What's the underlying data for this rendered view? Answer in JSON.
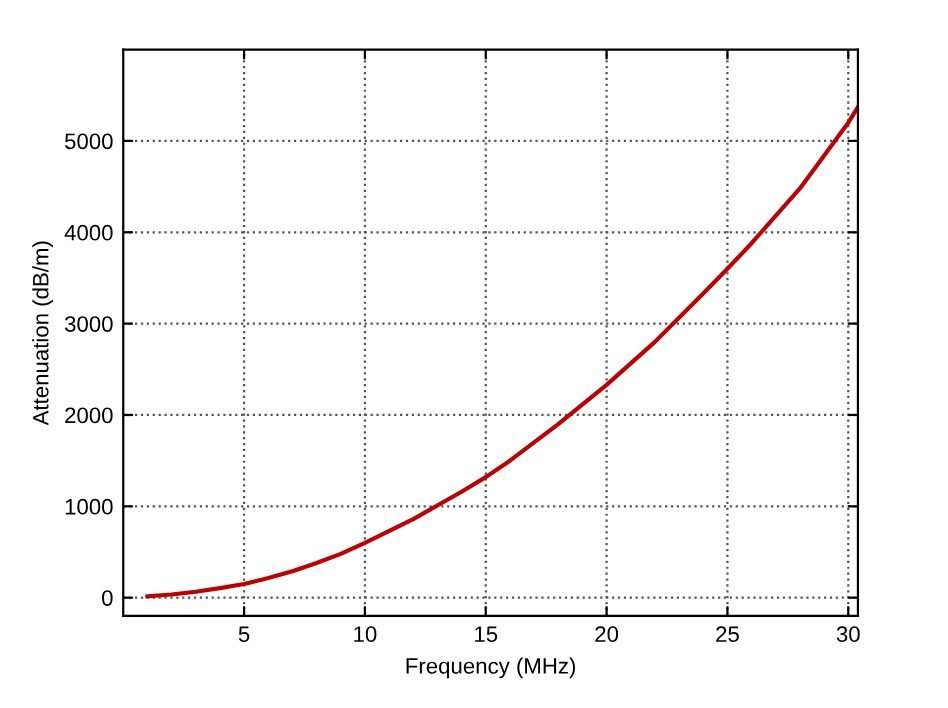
{
  "chart_data": {
    "type": "line",
    "xlabel": "Frequency (MHz)",
    "ylabel": "Attenuation (dB/m)",
    "series": [
      {
        "color": "#c00000",
        "x": [
          1,
          2,
          3,
          4,
          5,
          6,
          7,
          8,
          9,
          10,
          12,
          14,
          15,
          16,
          18,
          20,
          22,
          24,
          25,
          26,
          28,
          30,
          30.4
        ],
        "values": [
          15,
          35,
          65,
          105,
          150,
          215,
          290,
          380,
          480,
          600,
          860,
          1160,
          1320,
          1500,
          1900,
          2330,
          2800,
          3330,
          3600,
          3880,
          4480,
          5200,
          5370
        ]
      }
    ],
    "xlim": [
      0,
      30.4
    ],
    "ylim": [
      -200,
      6000
    ],
    "xticks": [
      5,
      10,
      15,
      20,
      25,
      30
    ],
    "yticks": [
      0,
      1000,
      2000,
      3000,
      4000,
      5000
    ],
    "grid": true,
    "legend": false,
    "marker": "none",
    "line_style": "solid"
  }
}
